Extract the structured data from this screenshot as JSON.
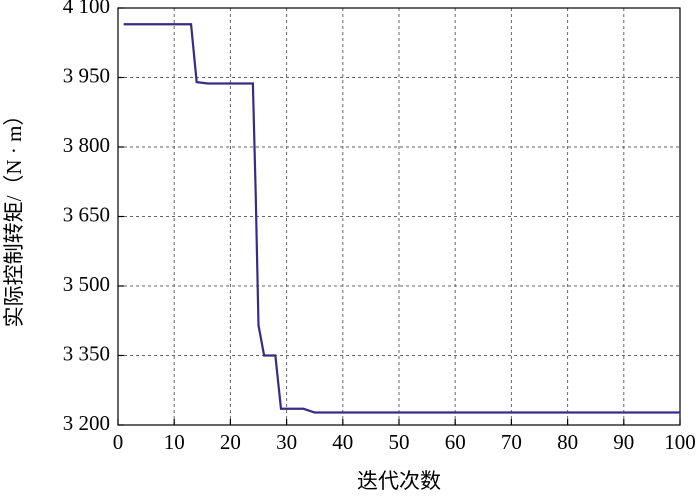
{
  "chart_data": {
    "type": "line",
    "x_label": "迭代次数",
    "y_label": "实际控制转矩/（N · m）",
    "x": [
      1,
      13,
      14,
      16,
      24,
      24.5,
      25,
      26,
      28,
      29,
      33,
      35,
      100
    ],
    "series": [
      {
        "color": "#3a2a86",
        "values": [
          4065,
          4065,
          3940,
          3937,
          3937,
          3700,
          3415,
          3350,
          3350,
          3235,
          3235,
          3227,
          3227
        ]
      }
    ],
    "xlim": [
      0,
      100
    ],
    "xticks": [
      0,
      10,
      20,
      30,
      40,
      50,
      60,
      70,
      80,
      90,
      100
    ],
    "ylim": [
      3200,
      4100
    ],
    "yticks": [
      {
        "value": 3200,
        "label": "3 200"
      },
      {
        "value": 3350,
        "label": "3 350"
      },
      {
        "value": 3500,
        "label": "3 500"
      },
      {
        "value": 3650,
        "label": "3 650"
      },
      {
        "value": 3800,
        "label": "3 800"
      },
      {
        "value": 3950,
        "label": "3 950"
      },
      {
        "value": 4100,
        "label": "4 100"
      }
    ],
    "grid": true
  }
}
